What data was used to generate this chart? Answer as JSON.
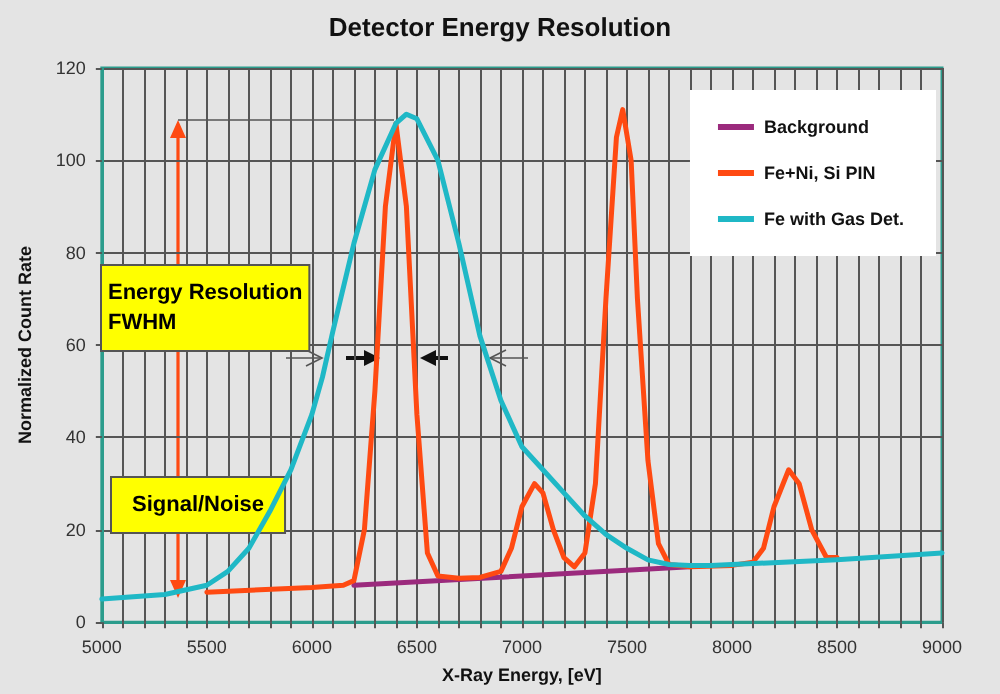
{
  "chart_data": {
    "type": "line",
    "title": "Detector Energy Resolution",
    "xlabel": "X-Ray Energy, [eV]",
    "ylabel": "Normalized Count Rate",
    "xlim": [
      5000,
      9000
    ],
    "xticks": [
      5000,
      {
        "value": 5100,
        "label": null
      },
      {
        "value": 5200,
        "label": null
      },
      {
        "value": 5300,
        "label": null
      },
      {
        "value": 5400,
        "label": null
      },
      5500,
      {
        "value": 5600,
        "label": null
      },
      {
        "value": 5700,
        "label": null
      },
      {
        "value": 5800,
        "label": null
      },
      {
        "value": 5900,
        "label": null
      },
      6000,
      {
        "value": 6100,
        "label": null
      },
      {
        "value": 6200,
        "label": null
      },
      {
        "value": 6300,
        "label": null
      },
      {
        "value": 6400,
        "label": null
      },
      6500,
      {
        "value": 6600,
        "label": null
      },
      {
        "value": 6700,
        "label": null
      },
      {
        "value": 6800,
        "label": null
      },
      {
        "value": 6900,
        "label": null
      },
      7000,
      {
        "value": 7100,
        "label": null
      },
      {
        "value": 7200,
        "label": null
      },
      {
        "value": 7300,
        "label": null
      },
      {
        "value": 7400,
        "label": null
      },
      7500,
      {
        "value": 7600,
        "label": null
      },
      {
        "value": 7700,
        "label": null
      },
      {
        "value": 7800,
        "label": null
      },
      {
        "value": 7900,
        "label": null
      },
      8000,
      {
        "value": 8100,
        "label": null
      },
      {
        "value": 8200,
        "label": null
      },
      {
        "value": 8300,
        "label": null
      },
      {
        "value": 8400,
        "label": null
      },
      8500,
      {
        "value": 8600,
        "label": null
      },
      {
        "value": 8700,
        "label": null
      },
      {
        "value": 8800,
        "label": null
      },
      {
        "value": 8900,
        "label": null
      },
      9000
    ],
    "ylim": [
      0,
      120
    ],
    "yticks": [
      0,
      20,
      40,
      60,
      80,
      100,
      120
    ],
    "grid": true,
    "legend": "top right",
    "marker": "none",
    "line_style": "solid",
    "annotations": [
      "Energy Resolution\nFWHM",
      "Signal/Noise"
    ],
    "series": [
      {
        "name": "Background",
        "color": "#9b2a7d",
        "x": [
          6200,
          7800
        ],
        "values": [
          8,
          12
        ]
      },
      {
        "name": "Fe+Ni, Si PIN",
        "color": "#ff4a12",
        "x": [
          5500,
          6000,
          6150,
          6200,
          6250,
          6300,
          6350,
          6400,
          6450,
          6500,
          6550,
          6600,
          6700,
          6800,
          6900,
          6950,
          7000,
          7060,
          7100,
          7150,
          7200,
          7250,
          7300,
          7350,
          7400,
          7450,
          7480,
          7520,
          7550,
          7600,
          7650,
          7700,
          7800,
          8000,
          8100,
          8150,
          8200,
          8270,
          8320,
          8380,
          8450,
          8500
        ],
        "values": [
          6.5,
          7.5,
          8,
          9,
          20,
          50,
          90,
          108,
          90,
          45,
          15,
          10,
          9.5,
          9.7,
          11,
          16,
          25,
          30,
          28,
          20,
          14,
          12,
          15,
          30,
          70,
          105,
          111,
          100,
          70,
          35,
          17,
          12.5,
          12,
          12.3,
          13,
          16,
          25,
          33,
          30,
          20,
          14,
          14
        ]
      },
      {
        "name": "Fe with Gas Det.",
        "color": "#1fb8c6",
        "x": [
          5000,
          5300,
          5500,
          5600,
          5700,
          5800,
          5900,
          6000,
          6050,
          6100,
          6200,
          6300,
          6400,
          6450,
          6500,
          6600,
          6700,
          6800,
          6900,
          7000,
          7100,
          7200,
          7300,
          7400,
          7500,
          7600,
          7700,
          7800,
          7900,
          8000,
          8500,
          9000
        ],
        "values": [
          5,
          6,
          8,
          11,
          16,
          24,
          33,
          45,
          53,
          63,
          82,
          98,
          108,
          110,
          109,
          100,
          82,
          62,
          48,
          38,
          33,
          28,
          23,
          19,
          16,
          13.5,
          12.5,
          12.3,
          12.3,
          12.5,
          13.5,
          15
        ]
      }
    ]
  }
}
